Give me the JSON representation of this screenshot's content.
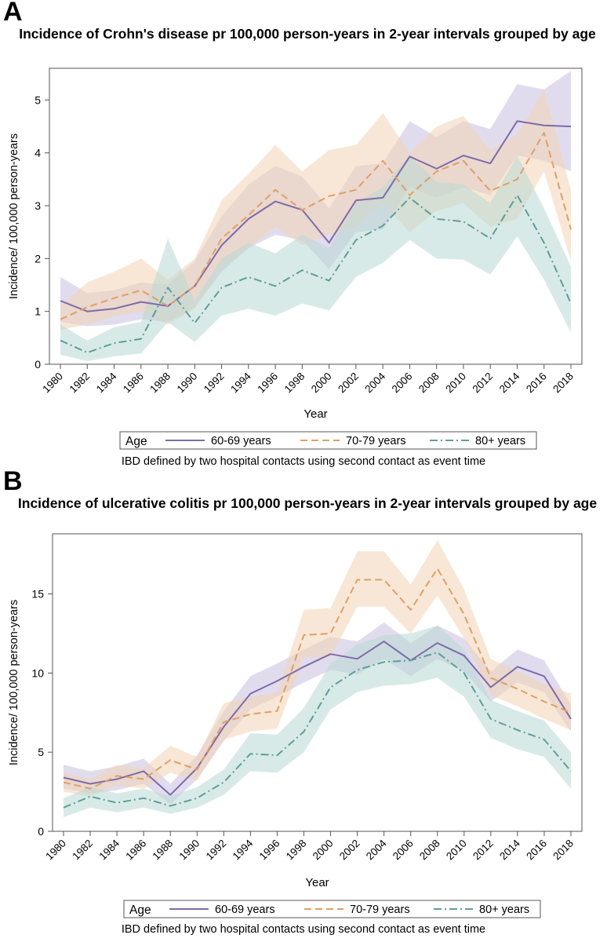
{
  "panels": [
    {
      "letter": "A",
      "footnote": "IBD defined by two hospital contacts using second contact as event time"
    },
    {
      "letter": "B",
      "footnote": "IBD defined by two hospital contacts using second contact as event time"
    }
  ],
  "chart_data": [
    {
      "type": "line",
      "title": "Incidence of Crohn's disease pr 100,000 person-years  in 2-year intervals grouped by age",
      "xlabel": "Year",
      "ylabel": "Incidence/ 100,000 person-years",
      "ylim": [
        0,
        5.6
      ],
      "yticks": [
        0,
        1,
        2,
        3,
        4,
        5
      ],
      "x": [
        1980,
        1982,
        1984,
        1986,
        1988,
        1990,
        1992,
        1994,
        1996,
        1998,
        2000,
        2002,
        2004,
        2006,
        2008,
        2010,
        2012,
        2014,
        2016,
        2018
      ],
      "legend_title": "Age",
      "legend_position": "bottom",
      "grid": false,
      "series": [
        {
          "name": "60-69 years",
          "color": "#7e6ba8",
          "band_color": "#c9c0de",
          "dash": "solid",
          "values": [
            1.2,
            1.0,
            1.05,
            1.18,
            1.1,
            1.48,
            2.25,
            2.75,
            3.08,
            2.92,
            2.3,
            3.1,
            3.15,
            3.93,
            3.7,
            3.95,
            3.8,
            4.6,
            4.52,
            4.5
          ],
          "upper": [
            1.65,
            1.35,
            1.4,
            1.55,
            1.5,
            1.95,
            2.8,
            3.4,
            3.75,
            3.55,
            2.95,
            3.75,
            3.8,
            4.6,
            4.3,
            4.6,
            4.45,
            5.3,
            5.2,
            5.55
          ],
          "lower": [
            0.8,
            0.72,
            0.75,
            0.85,
            0.8,
            1.08,
            1.75,
            2.2,
            2.45,
            2.35,
            1.8,
            2.5,
            2.55,
            3.35,
            3.15,
            3.35,
            3.2,
            3.95,
            3.85,
            3.65
          ]
        },
        {
          "name": "70-79 years",
          "color": "#e0a064",
          "band_color": "#f2d3b5",
          "dash": "long",
          "values": [
            0.85,
            1.08,
            1.25,
            1.4,
            1.1,
            1.48,
            2.38,
            2.82,
            3.3,
            2.92,
            3.18,
            3.3,
            3.85,
            3.2,
            3.65,
            3.85,
            3.28,
            3.5,
            4.38,
            2.55
          ],
          "upper": [
            1.1,
            1.55,
            1.75,
            2.0,
            1.6,
            2.0,
            3.1,
            3.6,
            4.15,
            3.65,
            4.05,
            4.15,
            4.75,
            4.0,
            4.5,
            4.7,
            4.05,
            4.35,
            5.2,
            3.3
          ],
          "lower": [
            0.65,
            0.75,
            0.9,
            1.0,
            0.75,
            1.05,
            1.82,
            2.2,
            2.6,
            2.25,
            2.45,
            2.6,
            3.05,
            2.5,
            2.9,
            3.05,
            2.6,
            2.75,
            3.65,
            1.95
          ]
        },
        {
          "name": "80+ years",
          "color": "#5e9e98",
          "band_color": "#b8d8d4",
          "dash": "dashdot",
          "values": [
            0.45,
            0.22,
            0.4,
            0.48,
            1.45,
            0.78,
            1.45,
            1.65,
            1.48,
            1.78,
            1.58,
            2.35,
            2.62,
            3.15,
            2.75,
            2.7,
            2.38,
            3.2,
            2.3,
            1.15
          ],
          "upper": [
            0.75,
            0.45,
            0.7,
            0.8,
            2.38,
            1.2,
            2.0,
            2.3,
            2.1,
            2.45,
            2.2,
            3.05,
            3.35,
            3.95,
            3.45,
            3.4,
            3.05,
            3.95,
            2.95,
            1.85
          ],
          "lower": [
            0.18,
            0.06,
            0.15,
            0.2,
            0.8,
            0.42,
            0.92,
            1.05,
            0.92,
            1.15,
            1.02,
            1.65,
            1.92,
            2.35,
            2.0,
            1.98,
            1.7,
            2.42,
            1.6,
            0.6
          ]
        }
      ]
    },
    {
      "type": "line",
      "title": "Incidence of ulcerative colitis pr 100,000 person-years in 2-year intervals grouped by age",
      "xlabel": "Year",
      "ylabel": "Incidence/ 100,000 person-years",
      "ylim": [
        0,
        18.8
      ],
      "yticks": [
        0,
        5,
        10,
        15
      ],
      "x": [
        1980,
        1982,
        1984,
        1986,
        1988,
        1990,
        1992,
        1994,
        1996,
        1998,
        2000,
        2002,
        2004,
        2006,
        2008,
        2010,
        2012,
        2014,
        2016,
        2018
      ],
      "legend_title": "Age",
      "legend_position": "bottom",
      "grid": false,
      "series": [
        {
          "name": "60-69 years",
          "color": "#7e6ba8",
          "band_color": "#c9c0de",
          "dash": "solid",
          "values": [
            3.4,
            3.0,
            3.3,
            3.8,
            2.3,
            4.0,
            6.6,
            8.7,
            9.5,
            10.4,
            11.2,
            10.9,
            12.0,
            10.8,
            11.9,
            11.1,
            9.1,
            10.4,
            9.8,
            7.1
          ],
          "upper": [
            4.2,
            3.8,
            4.1,
            4.6,
            3.0,
            4.8,
            7.6,
            9.8,
            10.6,
            11.5,
            12.3,
            12.0,
            13.2,
            11.9,
            13.0,
            12.2,
            10.1,
            11.5,
            10.8,
            8.0
          ],
          "lower": [
            2.7,
            2.4,
            2.6,
            3.0,
            1.7,
            3.3,
            5.7,
            7.7,
            8.5,
            9.4,
            10.2,
            9.9,
            10.9,
            9.8,
            10.9,
            10.1,
            8.2,
            9.4,
            8.8,
            6.3
          ]
        },
        {
          "name": "70-79 years",
          "color": "#e0a064",
          "band_color": "#f2d3b5",
          "dash": "long",
          "values": [
            3.1,
            2.7,
            3.5,
            3.3,
            4.5,
            3.9,
            6.9,
            7.4,
            7.6,
            12.4,
            12.5,
            15.9,
            15.9,
            14.0,
            16.6,
            13.7,
            9.7,
            9.0,
            8.2,
            7.5
          ],
          "upper": [
            3.7,
            3.3,
            4.2,
            4.0,
            5.4,
            4.7,
            8.1,
            8.5,
            8.8,
            14.0,
            14.1,
            17.7,
            17.7,
            15.6,
            18.4,
            15.3,
            10.9,
            10.1,
            9.3,
            8.7
          ],
          "lower": [
            2.5,
            2.2,
            2.9,
            2.7,
            3.7,
            3.2,
            5.8,
            6.3,
            6.5,
            11.0,
            11.0,
            14.2,
            14.2,
            12.5,
            14.9,
            12.2,
            8.6,
            7.9,
            7.1,
            6.4
          ]
        },
        {
          "name": "80+ years",
          "color": "#5e9e98",
          "band_color": "#b8d8d4",
          "dash": "dashdot",
          "values": [
            1.5,
            2.2,
            1.8,
            2.1,
            1.6,
            2.1,
            3.1,
            4.9,
            4.8,
            6.3,
            9.1,
            10.2,
            10.7,
            10.8,
            11.3,
            10.0,
            7.1,
            6.4,
            5.8,
            3.8
          ],
          "upper": [
            2.1,
            2.8,
            2.4,
            2.7,
            2.2,
            2.8,
            3.9,
            6.2,
            6.1,
            7.8,
            10.6,
            11.8,
            12.4,
            12.5,
            13.0,
            11.5,
            8.3,
            7.6,
            7.0,
            5.0
          ],
          "lower": [
            0.9,
            1.5,
            1.2,
            1.5,
            1.1,
            1.5,
            2.3,
            3.8,
            3.7,
            5.0,
            7.7,
            8.8,
            9.2,
            9.3,
            9.7,
            8.5,
            5.9,
            5.2,
            4.7,
            2.7
          ]
        }
      ]
    }
  ]
}
